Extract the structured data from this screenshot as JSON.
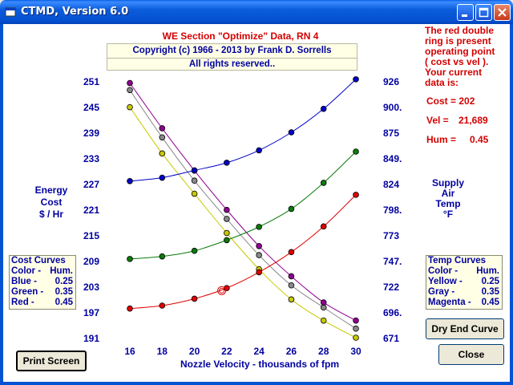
{
  "window": {
    "title": "CTMD, Version 6.0",
    "icon": "app-icon"
  },
  "header": {
    "title": "WE Section \"Optimize\" Data, RN 4",
    "copyright": "Copyright (c) 1966 - 2013 by Frank D. Sorrells",
    "rights": "All rights reserved.."
  },
  "info": {
    "note_lines": [
      "The red double",
      "ring is present",
      "operating point",
      "( cost vs vel ).",
      "Your current",
      "data is:"
    ],
    "cost_label": "Cost = 202",
    "vel_label": "Vel =",
    "vel_value": "21,689",
    "hum_label": "Hum =",
    "hum_value": "0.45"
  },
  "y_left_label": [
    "Energy",
    "Cost",
    "$ / Hr"
  ],
  "y_right_label": [
    "Supply",
    "Air",
    "Temp",
    "°F"
  ],
  "cost_legend": {
    "title": "Cost Curves",
    "header_left": "Color -",
    "header_right": "Hum.",
    "rows": [
      {
        "label": "Blue -",
        "value": "0.25"
      },
      {
        "label": "Green -",
        "value": "0.35"
      },
      {
        "label": "Red -",
        "value": "0.45"
      }
    ]
  },
  "temp_legend": {
    "title": "Temp Curves",
    "header_left": "Color -",
    "header_right": "Hum.",
    "rows": [
      {
        "label": "Yellow -",
        "value": "0.25"
      },
      {
        "label": "Gray -",
        "value": "0.35"
      },
      {
        "label": "Magenta -",
        "value": "0.45"
      }
    ]
  },
  "buttons": {
    "print": "Print Screen",
    "dry_end": "Dry End Curve",
    "close": "Close"
  },
  "colors": {
    "blue": "#0000c8",
    "green": "#0a7a0a",
    "red": "#e00000",
    "yellow": "#c8c800",
    "gray": "#888888",
    "magenta": "#900090",
    "axis_text": "#0000a0"
  },
  "chart_data": {
    "type": "line",
    "xlabel": "Nozzle Velocity - thousands of fpm",
    "x": [
      16,
      18,
      20,
      22,
      24,
      26,
      28,
      30
    ],
    "x_ticks": [
      "16",
      "18",
      "20",
      "22",
      "24",
      "26",
      "28",
      "30"
    ],
    "y_left_ticks": [
      "251",
      "245",
      "239",
      "233",
      "227",
      "221",
      "215",
      "209",
      "203",
      "197",
      "191"
    ],
    "y_right_ticks": [
      "926",
      "900.",
      "875",
      "849.",
      "824",
      "798.",
      "773",
      "747.",
      "722",
      "696.",
      "671"
    ],
    "ylim_left": [
      191,
      251
    ],
    "ylim_right": [
      671,
      926
    ],
    "grid": false,
    "cost_series": [
      {
        "name": "Blue",
        "color": "#0000c8",
        "values": [
          227.6,
          228.4,
          230.1,
          231.9,
          234.8,
          239.0,
          244.5,
          251.4
        ]
      },
      {
        "name": "Green",
        "color": "#0a7a0a",
        "values": [
          209.4,
          210.0,
          211.3,
          213.8,
          216.9,
          221.1,
          227.2,
          234.5
        ]
      },
      {
        "name": "Red",
        "color": "#e00000",
        "values": [
          197.8,
          198.5,
          200.1,
          202.6,
          206.3,
          211.0,
          217.0,
          224.4
        ]
      }
    ],
    "temp_series": [
      {
        "name": "Yellow",
        "color": "#c8c800",
        "values": [
          900.0,
          854.0,
          814.0,
          775.0,
          739.0,
          709.0,
          688.0,
          671.0
        ]
      },
      {
        "name": "Gray",
        "color": "#888888",
        "values": [
          917.0,
          870.0,
          827.0,
          789.0,
          753.0,
          723.0,
          701.0,
          680.0
        ]
      },
      {
        "name": "Magenta",
        "color": "#900090",
        "values": [
          924.0,
          879.0,
          837.0,
          798.0,
          762.0,
          732.0,
          706.0,
          688.0
        ]
      }
    ],
    "operating_point": {
      "x": 21.689,
      "y": 202
    }
  }
}
